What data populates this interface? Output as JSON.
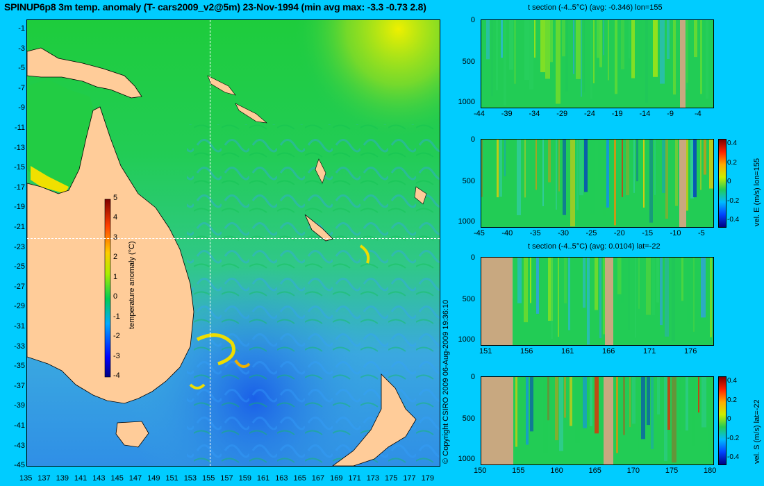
{
  "title": "SPINUP6p8 3m temp. anomaly (T- cars2009_v2@5m) 23-Nov-1994 (min avg max: -3.3 -0.73 2.8)",
  "copyright": "© Copyright CSIRO 2009   06-Aug-2009 19:36:10",
  "colors": {
    "background": "#00ccff",
    "land": "#ffcc99",
    "section_land": "#c8a880",
    "crosshair": "#ffffff"
  },
  "map": {
    "lat_ticks": [
      "-1",
      "-3",
      "-5",
      "-7",
      "-9",
      "-11",
      "-13",
      "-15",
      "-17",
      "-19",
      "-21",
      "-23",
      "-25",
      "-27",
      "-29",
      "-31",
      "-33",
      "-35",
      "-37",
      "-39",
      "-41",
      "-43",
      "-45"
    ],
    "lon_ticks": [
      "135",
      "137",
      "139",
      "141",
      "143",
      "145",
      "147",
      "149",
      "151",
      "153",
      "155",
      "157",
      "159",
      "161",
      "163",
      "165",
      "167",
      "169",
      "171",
      "173",
      "175",
      "177",
      "179"
    ],
    "lat_range": [
      -45,
      0
    ],
    "lon_range": [
      135,
      180
    ],
    "crosshair": {
      "lon": 155,
      "lat": -22
    },
    "colorbar": {
      "label": "temperature anomaly (°C)",
      "ticks": [
        "5",
        "4",
        "3",
        "2",
        "1",
        "0",
        "-1",
        "-2",
        "-3",
        "-4"
      ],
      "range": [
        -4,
        5
      ]
    }
  },
  "sections": [
    {
      "title": "t section (-4..5°C) (avg: -0.346) lon=155",
      "y_ticks": [
        "0",
        "500",
        "1000"
      ],
      "x_ticks": [
        "-44",
        "-39",
        "-34",
        "-29",
        "-24",
        "-19",
        "-14",
        "-9",
        "-4"
      ],
      "colorbar_label": "",
      "colorbar_ticks": []
    },
    {
      "title": "",
      "y_ticks": [
        "0",
        "500",
        "1000"
      ],
      "x_ticks": [
        "-45",
        "-40",
        "-35",
        "-30",
        "-25",
        "-20",
        "-15",
        "-10",
        "-5"
      ],
      "colorbar_label": "vel. E (m/s) lon=155",
      "colorbar_ticks": [
        "0.4",
        "0.2",
        "0",
        "-0.2",
        "-0.4"
      ]
    },
    {
      "title": "t section (-4..5°C) (avg: 0.0104) lat=-22",
      "y_ticks": [
        "0",
        "500",
        "1000"
      ],
      "x_ticks": [
        "151",
        "156",
        "161",
        "166",
        "171",
        "176"
      ],
      "colorbar_label": "",
      "colorbar_ticks": []
    },
    {
      "title": "",
      "y_ticks": [
        "0",
        "500",
        "1000"
      ],
      "x_ticks": [
        "150",
        "155",
        "160",
        "165",
        "170",
        "175",
        "180"
      ],
      "colorbar_label": "vel. S (m/s) lat=-22",
      "colorbar_ticks": [
        "0.4",
        "0.2",
        "0",
        "-0.2",
        "-0.4"
      ]
    }
  ]
}
